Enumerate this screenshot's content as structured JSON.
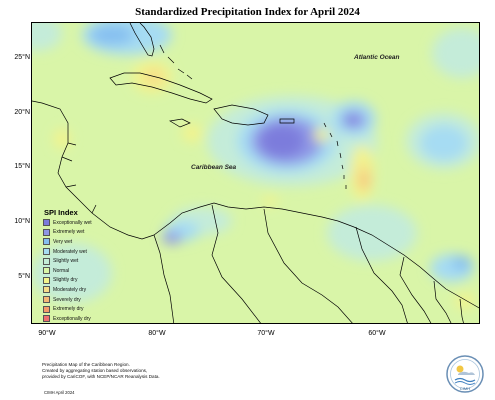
{
  "title": "Standardized Precipitation Index for April 2024",
  "latitude_labels": [
    "25°N",
    "20°N",
    "15°N",
    "10°N",
    "5°N"
  ],
  "longitude_labels": [
    "90°W",
    "80°W",
    "70°W",
    "60°W"
  ],
  "place_labels": {
    "atlantic": "Atlantic Ocean",
    "caribbean": "Caribbean Sea"
  },
  "legend": {
    "title": "SPI Index",
    "items": [
      {
        "label": "Exceptionally wet",
        "color": "#7b7bdc"
      },
      {
        "label": "Extremely wet",
        "color": "#8f97e6"
      },
      {
        "label": "Very wet",
        "color": "#86bff0"
      },
      {
        "label": "Moderately wet",
        "color": "#a6dcf3"
      },
      {
        "label": "Slightly wet",
        "color": "#c4ecd9"
      },
      {
        "label": "Normal",
        "color": "#d9f5a8"
      },
      {
        "label": "Slightly dry",
        "color": "#f3f38c"
      },
      {
        "label": "Moderately dry",
        "color": "#f6dc8a"
      },
      {
        "label": "Severely dry",
        "color": "#f4b776"
      },
      {
        "label": "Extremely dry",
        "color": "#f49a6a"
      },
      {
        "label": "Exceptionally dry",
        "color": "#ee6f6f"
      }
    ]
  },
  "footnote": {
    "line1": "Precipitation Map of the Caribbean Region.",
    "line2": "Created by aggregating station based observations,",
    "line3": "provided by CariCOF, with NCEP/NCAR Reanalysis Data.",
    "date": "CIMH April 2024"
  },
  "logo": {
    "text": "CIMH"
  },
  "colors": {
    "base_normal": "#d9f5a8",
    "land_outline": "#000000",
    "map_border": "#000000"
  }
}
